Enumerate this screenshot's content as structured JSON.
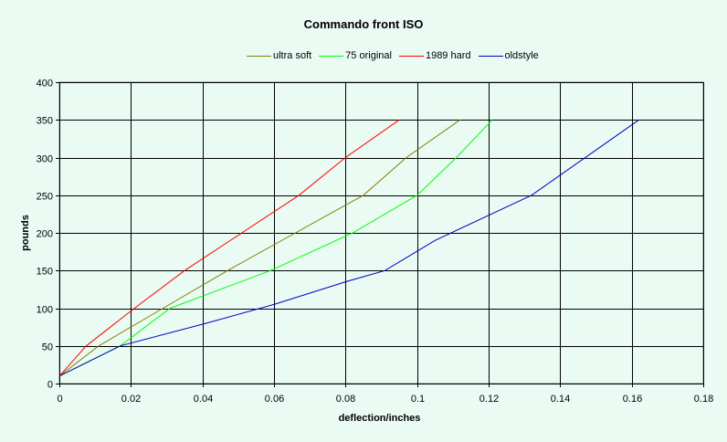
{
  "chart_data": {
    "type": "line",
    "title": "Commando front ISO",
    "xlabel": "deflection/inches",
    "ylabel": "pounds",
    "xlim": [
      0,
      0.18
    ],
    "ylim": [
      0,
      400
    ],
    "x_ticks": [
      "0",
      "0.02",
      "0.04",
      "0.06",
      "0.08",
      "0.1",
      "0.12",
      "0.14",
      "0.16",
      "0.18"
    ],
    "y_ticks": [
      "0",
      "50",
      "100",
      "150",
      "200",
      "250",
      "300",
      "350",
      "400"
    ],
    "grid": true,
    "legend_position": "top",
    "series": [
      {
        "name": "ultra soft",
        "color": "#808000",
        "points": [
          [
            0,
            10
          ],
          [
            0.011,
            50
          ],
          [
            0.029,
            100
          ],
          [
            0.047,
            150
          ],
          [
            0.066,
            200
          ],
          [
            0.085,
            250
          ],
          [
            0.097,
            300
          ],
          [
            0.112,
            350
          ]
        ]
      },
      {
        "name": "75 original",
        "color": "#00ff00",
        "points": [
          [
            0,
            10
          ],
          [
            0.017,
            50
          ],
          [
            0.031,
            100
          ],
          [
            0.059,
            150
          ],
          [
            0.082,
            200
          ],
          [
            0.1,
            250
          ],
          [
            0.111,
            300
          ],
          [
            0.121,
            350
          ]
        ]
      },
      {
        "name": "1989 hard",
        "color": "#ff0000",
        "points": [
          [
            0,
            10
          ],
          [
            0.0075,
            50
          ],
          [
            0.021,
            100
          ],
          [
            0.035,
            150
          ],
          [
            0.051,
            200
          ],
          [
            0.067,
            250
          ],
          [
            0.08,
            300
          ],
          [
            0.095,
            350
          ]
        ]
      },
      {
        "name": "oldstyle",
        "color": "#0000c0",
        "points": [
          [
            0,
            10
          ],
          [
            0.017,
            50
          ],
          [
            0.041,
            80
          ],
          [
            0.06,
            105
          ],
          [
            0.08,
            135
          ],
          [
            0.091,
            150
          ],
          [
            0.105,
            190
          ],
          [
            0.132,
            250
          ],
          [
            0.162,
            350
          ]
        ]
      }
    ]
  }
}
